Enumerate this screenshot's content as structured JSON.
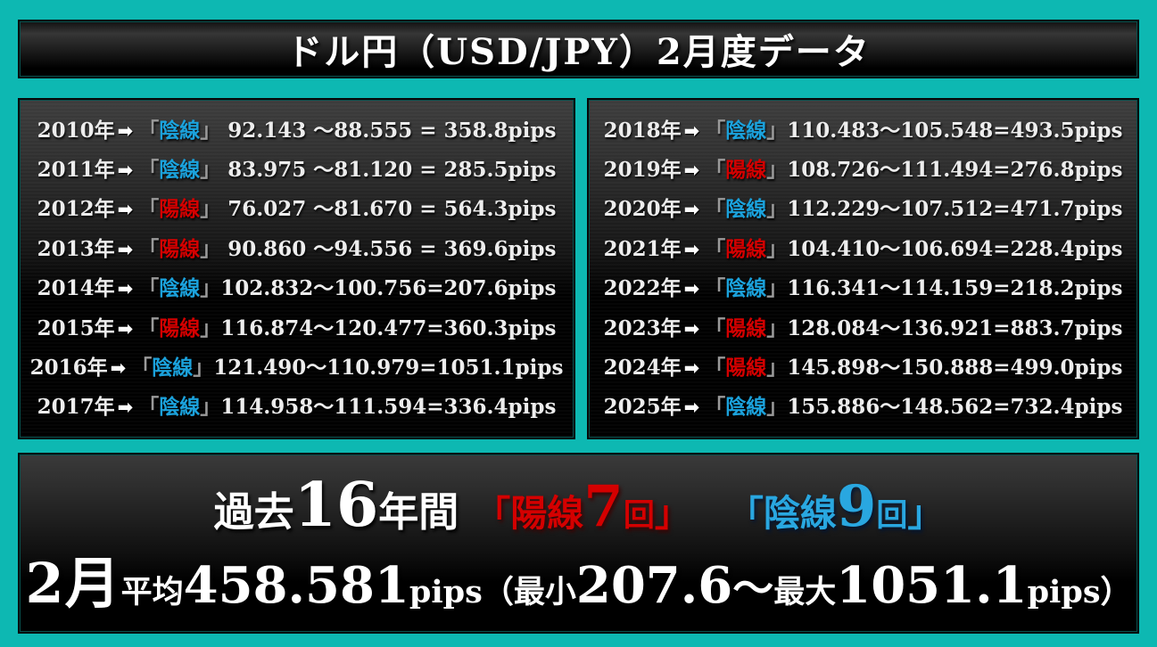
{
  "title": "ドル円（USD/JPY）2月度データ",
  "colors": {
    "background_teal": "#0db8b2",
    "bull_red": "#d40000",
    "bear_blue": "#1ba2dc",
    "bracket_gray": "#9a9a9a",
    "text_white": "#ededed"
  },
  "row_arrow": "➡",
  "bracket_open": "「",
  "bracket_close": "」",
  "left_rows": [
    {
      "year": "2010年",
      "dir": "陰線",
      "type": "bear",
      "values": " 92.143 ～88.555 = 358.8pips"
    },
    {
      "year": "2011年",
      "dir": "陰線",
      "type": "bear",
      "values": " 83.975 ～81.120 = 285.5pips"
    },
    {
      "year": "2012年",
      "dir": "陽線",
      "type": "bull",
      "values": " 76.027 ～81.670 = 564.3pips"
    },
    {
      "year": "2013年",
      "dir": "陽線",
      "type": "bull",
      "values": " 90.860 ～94.556 = 369.6pips"
    },
    {
      "year": "2014年",
      "dir": "陰線",
      "type": "bear",
      "values": "102.832～100.756=207.6pips"
    },
    {
      "year": "2015年",
      "dir": "陽線",
      "type": "bull",
      "values": "116.874～120.477=360.3pips"
    },
    {
      "year": "2016年",
      "dir": "陰線",
      "type": "bear",
      "values": "121.490～110.979=1051.1pips"
    },
    {
      "year": "2017年",
      "dir": "陰線",
      "type": "bear",
      "values": "114.958～111.594=336.4pips"
    }
  ],
  "right_rows": [
    {
      "year": "2018年",
      "dir": "陰線",
      "type": "bear",
      "values": "110.483～105.548=493.5pips"
    },
    {
      "year": "2019年",
      "dir": "陽線",
      "type": "bull",
      "values": "108.726～111.494=276.8pips"
    },
    {
      "year": "2020年",
      "dir": "陰線",
      "type": "bear",
      "values": "112.229～107.512=471.7pips"
    },
    {
      "year": "2021年",
      "dir": "陽線",
      "type": "bull",
      "values": "104.410～106.694=228.4pips"
    },
    {
      "year": "2022年",
      "dir": "陰線",
      "type": "bear",
      "values": "116.341～114.159=218.2pips"
    },
    {
      "year": "2023年",
      "dir": "陽線",
      "type": "bull",
      "values": "128.084～136.921=883.7pips"
    },
    {
      "year": "2024年",
      "dir": "陽線",
      "type": "bull",
      "values": "145.898～150.888=499.0pips"
    },
    {
      "year": "2025年",
      "dir": "陰線",
      "type": "bear",
      "values": "155.886～148.562=732.4pips"
    }
  ],
  "summary": {
    "line1": {
      "past": "過去",
      "years": "16",
      "years_suffix": "年間",
      "bull": {
        "open": "「",
        "label": "陽線",
        "count": "7",
        "unit": "回",
        "close": "」"
      },
      "bear": {
        "open": "「",
        "label": "陰線",
        "count": "9",
        "unit": "回",
        "close": "」"
      }
    },
    "line2": {
      "month": "2月",
      "avg_label": "平均",
      "avg_value": "458.581",
      "pips1": "pips",
      "min_label": "（最小",
      "min_value": "207.6",
      "tilde": "～",
      "max_label": "最大",
      "max_value": "1051.1",
      "pips2": "pips）"
    }
  },
  "chart_data": {
    "type": "table",
    "title": "ドル円（USD/JPY）2月度データ",
    "columns": [
      "year",
      "candle",
      "start_price",
      "end_price",
      "range_pips"
    ],
    "rows": [
      [
        2010,
        "陰線",
        92.143,
        88.555,
        358.8
      ],
      [
        2011,
        "陰線",
        83.975,
        81.12,
        285.5
      ],
      [
        2012,
        "陽線",
        76.027,
        81.67,
        564.3
      ],
      [
        2013,
        "陽線",
        90.86,
        94.556,
        369.6
      ],
      [
        2014,
        "陰線",
        102.832,
        100.756,
        207.6
      ],
      [
        2015,
        "陽線",
        116.874,
        120.477,
        360.3
      ],
      [
        2016,
        "陰線",
        121.49,
        110.979,
        1051.1
      ],
      [
        2017,
        "陰線",
        114.958,
        111.594,
        336.4
      ],
      [
        2018,
        "陰線",
        110.483,
        105.548,
        493.5
      ],
      [
        2019,
        "陽線",
        108.726,
        111.494,
        276.8
      ],
      [
        2020,
        "陰線",
        112.229,
        107.512,
        471.7
      ],
      [
        2021,
        "陽線",
        104.41,
        106.694,
        228.4
      ],
      [
        2022,
        "陰線",
        116.341,
        114.159,
        218.2
      ],
      [
        2023,
        "陽線",
        128.084,
        136.921,
        883.7
      ],
      [
        2024,
        "陽線",
        145.898,
        150.888,
        499.0
      ],
      [
        2025,
        "陰線",
        155.886,
        148.562,
        732.4
      ]
    ],
    "summary": {
      "period_years": 16,
      "bull_count": 7,
      "bear_count": 9,
      "average_pips": 458.581,
      "min_pips": 207.6,
      "max_pips": 1051.1
    }
  }
}
